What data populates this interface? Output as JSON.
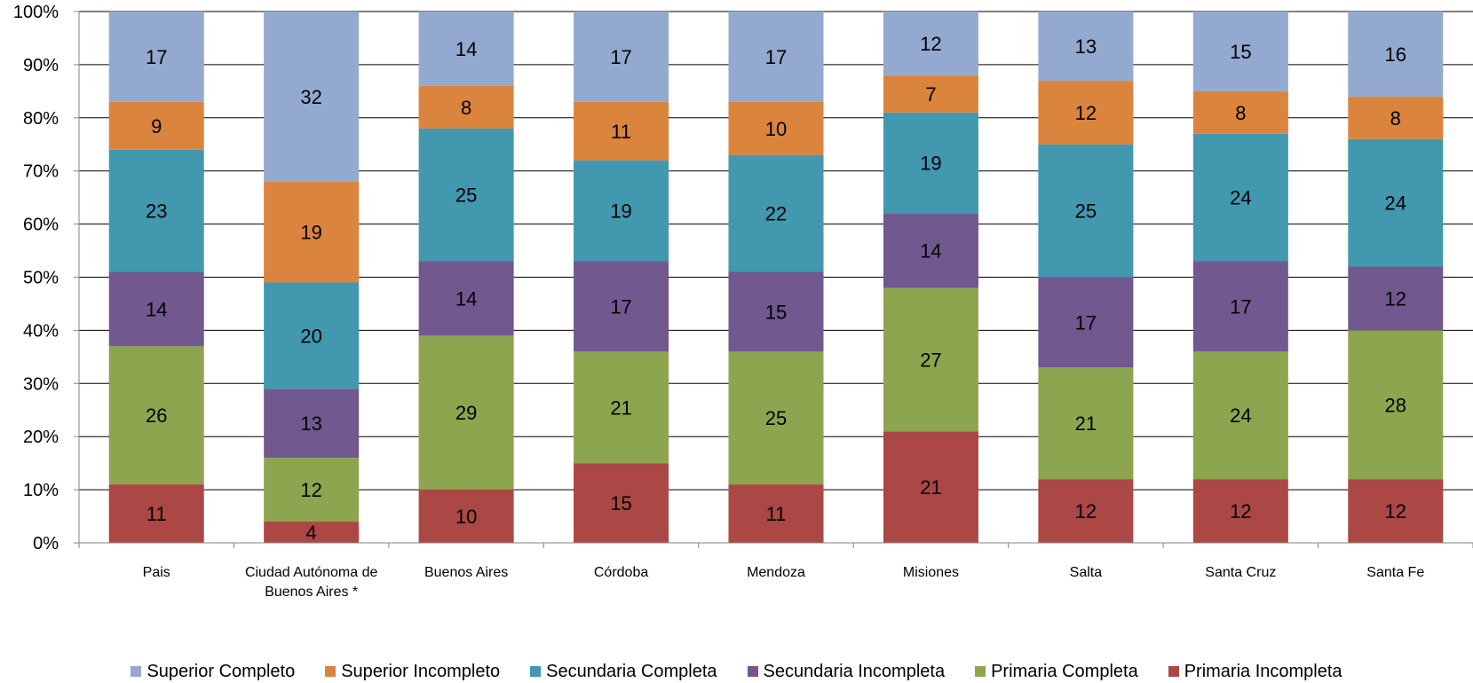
{
  "chart_data": {
    "type": "bar",
    "stacked": true,
    "percent_stacked": true,
    "categories": [
      "Pais",
      "Ciudad Autónoma de Buenos Aires *",
      "Buenos Aires",
      "Córdoba",
      "Mendoza",
      "Misiones",
      "Salta",
      "Santa Cruz",
      "Santa Fe"
    ],
    "category_lines": [
      [
        "Pais"
      ],
      [
        "Ciudad Autónoma de",
        "Buenos Aires *"
      ],
      [
        "Buenos Aires"
      ],
      [
        "Córdoba"
      ],
      [
        "Mendoza"
      ],
      [
        "Misiones"
      ],
      [
        "Salta"
      ],
      [
        "Santa Cruz"
      ],
      [
        "Santa Fe"
      ]
    ],
    "series": [
      {
        "name": "Primaria Incompleta",
        "color": "#ab4744",
        "values": [
          11,
          4,
          10,
          15,
          11,
          21,
          12,
          12,
          12
        ]
      },
      {
        "name": "Primaria Completa",
        "color": "#8da54f",
        "values": [
          26,
          12,
          29,
          21,
          25,
          27,
          21,
          24,
          28
        ]
      },
      {
        "name": "Secundaria Incompleta",
        "color": "#71588f",
        "values": [
          14,
          13,
          14,
          17,
          15,
          14,
          17,
          17,
          12
        ]
      },
      {
        "name": "Secundaria Completa",
        "color": "#4198af",
        "values": [
          23,
          20,
          25,
          19,
          22,
          19,
          25,
          24,
          24
        ]
      },
      {
        "name": "Superior Incompleto",
        "color": "#db843d",
        "values": [
          9,
          19,
          8,
          11,
          10,
          7,
          12,
          8,
          8
        ]
      },
      {
        "name": "Superior Completo",
        "color": "#93a9cf",
        "values": [
          17,
          32,
          14,
          17,
          17,
          12,
          13,
          15,
          16
        ]
      }
    ],
    "legend_order": [
      "Superior Completo",
      "Superior Incompleto",
      "Secundaria Completa",
      "Secundaria Incompleta",
      "Primaria Completa",
      "Primaria Incompleta"
    ],
    "yticks": [
      "0%",
      "10%",
      "20%",
      "30%",
      "40%",
      "50%",
      "60%",
      "70%",
      "80%",
      "90%",
      "100%"
    ],
    "ylim": [
      0,
      100
    ],
    "grid": true,
    "legend_position": "bottom"
  }
}
